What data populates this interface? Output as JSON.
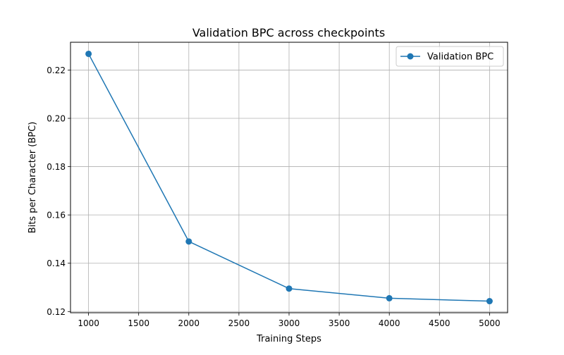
{
  "chart_data": {
    "type": "line",
    "title": "Validation BPC across checkpoints",
    "xlabel": "Training Steps",
    "ylabel": "Bits per Character (BPC)",
    "xlim": [
      820,
      5180
    ],
    "ylim": [
      0.1195,
      0.2315
    ],
    "x_ticks": [
      1000,
      1500,
      2000,
      2500,
      3000,
      3500,
      4000,
      4500,
      5000
    ],
    "y_ticks": [
      0.12,
      0.14,
      0.16,
      0.18,
      0.2,
      0.22
    ],
    "y_tick_decimals": 2,
    "grid": true,
    "legend_position": "upper right",
    "series": [
      {
        "name": "Validation BPC",
        "color": "#1f77b4",
        "marker": "circle",
        "x": [
          1000,
          2000,
          3000,
          4000,
          5000
        ],
        "y": [
          0.2267,
          0.149,
          0.1295,
          0.1255,
          0.1243
        ]
      }
    ]
  }
}
